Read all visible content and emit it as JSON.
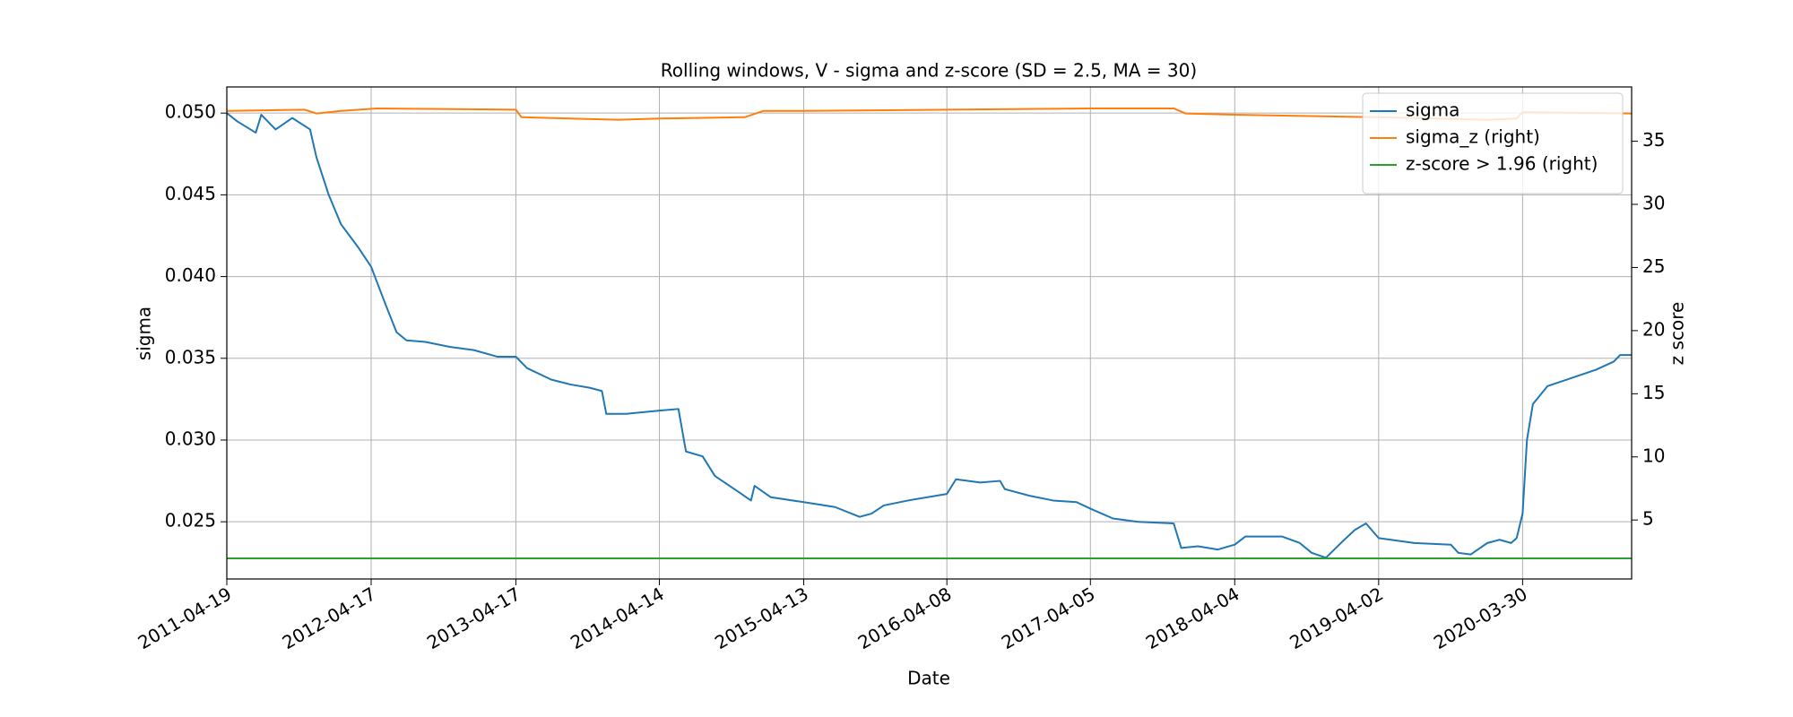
{
  "chart_data": {
    "type": "line",
    "title": "Rolling windows, V - sigma and z-score (SD = 2.5, MA = 30)",
    "x_label": "Date",
    "y_label": "sigma",
    "y2_label": "z score",
    "xlim": [
      "2011-04-19",
      "2020-12-30"
    ],
    "xticks": [
      "2011-04-19",
      "2012-04-17",
      "2013-04-17",
      "2014-04-14",
      "2015-04-13",
      "2016-04-08",
      "2017-04-05",
      "2018-04-04",
      "2019-04-02",
      "2020-03-30"
    ],
    "ylim": [
      0.0215,
      0.0516
    ],
    "yticks": [
      0.025,
      {
        "value": 0.03,
        "label": "0.030"
      },
      0.035,
      {
        "value": 0.04,
        "label": "0.040"
      },
      0.045,
      {
        "value": 0.05,
        "label": "0.050"
      }
    ],
    "y2lim": [
      0.33,
      39.3
    ],
    "y2ticks": [
      5,
      10,
      15,
      20,
      25,
      30,
      35
    ],
    "grid": true,
    "legend": "upper right",
    "series": [
      {
        "name": "sigma",
        "color": "#1f77b4",
        "x": [
          "2011-04-19",
          "2011-05-15",
          "2011-07-01",
          "2011-07-15",
          "2011-08-20",
          "2011-10-01",
          "2011-11-15",
          "2011-12-01",
          "2012-01-01",
          "2012-02-01",
          "2012-03-15",
          "2012-04-17",
          "2012-05-20",
          "2012-06-20",
          "2012-07-15",
          "2012-09-01",
          "2012-11-01",
          "2013-01-01",
          "2013-03-01",
          "2013-04-17",
          "2013-05-15",
          "2013-07-15",
          "2013-09-01",
          "2013-10-20",
          "2013-11-20",
          "2013-12-01",
          "2014-01-20",
          "2014-04-14",
          "2014-06-01",
          "2014-06-20",
          "2014-08-01",
          "2014-09-01",
          "2014-11-01",
          "2014-12-01",
          "2014-12-10",
          "2015-01-20",
          "2015-04-13",
          "2015-07-01",
          "2015-09-01",
          "2015-10-01",
          "2015-11-01",
          "2016-01-01",
          "2016-04-08",
          "2016-05-01",
          "2016-07-01",
          "2016-08-20",
          "2016-09-01",
          "2016-11-01",
          "2017-01-01",
          "2017-03-01",
          "2017-04-05",
          "2017-06-01",
          "2017-08-01",
          "2017-11-01",
          "2017-11-20",
          "2018-01-01",
          "2018-02-20",
          "2018-04-04",
          "2018-05-01",
          "2018-08-01",
          "2018-09-15",
          "2018-10-15",
          "2018-11-20",
          "2019-01-01",
          "2019-02-01",
          "2019-03-01",
          "2019-04-02",
          "2019-07-01",
          "2019-10-01",
          "2019-10-20",
          "2019-11-20",
          "2020-01-01",
          "2020-02-01",
          "2020-03-01",
          "2020-03-15",
          "2020-03-30",
          "2020-04-10",
          "2020-04-25",
          "2020-06-01",
          "2020-08-01",
          "2020-10-01",
          "2020-11-15",
          "2020-12-01",
          "2020-12-30"
        ],
        "values": [
          0.05,
          0.0495,
          0.0488,
          0.0499,
          0.049,
          0.0497,
          0.049,
          0.0473,
          0.045,
          0.0432,
          0.0418,
          0.0406,
          0.0385,
          0.0366,
          0.0361,
          0.036,
          0.0357,
          0.0355,
          0.0351,
          0.0351,
          0.0344,
          0.0337,
          0.0334,
          0.0332,
          0.033,
          0.0316,
          0.0316,
          0.0318,
          0.0319,
          0.0293,
          0.029,
          0.0278,
          0.0268,
          0.0263,
          0.0272,
          0.0265,
          0.0262,
          0.0259,
          0.0253,
          0.0255,
          0.026,
          0.0263,
          0.0267,
          0.0276,
          0.0274,
          0.0275,
          0.027,
          0.0266,
          0.0263,
          0.0262,
          0.0258,
          0.0252,
          0.025,
          0.0249,
          0.0234,
          0.0235,
          0.0233,
          0.0236,
          0.0241,
          0.0241,
          0.0237,
          0.0231,
          0.0228,
          0.0238,
          0.0245,
          0.0249,
          0.024,
          0.0237,
          0.0236,
          0.0231,
          0.023,
          0.0237,
          0.0239,
          0.0237,
          0.024,
          0.0255,
          0.03,
          0.0322,
          0.0333,
          0.0338,
          0.0343,
          0.0348,
          0.0352,
          0.0352
        ]
      },
      {
        "name": "sigma_z (right)",
        "color": "#ff7f0e",
        "axis": "y2",
        "x": [
          "2011-04-19",
          "2011-11-01",
          "2011-12-01",
          "2012-02-01",
          "2012-05-01",
          "2013-04-17",
          "2013-05-01",
          "2014-01-01",
          "2014-04-14",
          "2014-11-15",
          "2015-01-01",
          "2015-04-13",
          "2016-04-08",
          "2017-04-05",
          "2017-11-01",
          "2017-12-01",
          "2018-04-04",
          "2019-04-02",
          "2020-01-01",
          "2020-03-15",
          "2020-03-30",
          "2020-12-30"
        ],
        "values": [
          37.4,
          37.5,
          37.2,
          37.4,
          37.6,
          37.5,
          36.9,
          36.7,
          36.8,
          36.9,
          37.4,
          37.4,
          37.5,
          37.6,
          37.6,
          37.2,
          37.1,
          36.9,
          36.7,
          36.8,
          37.3,
          37.2
        ]
      },
      {
        "name": "z-score > 1.96 (right)",
        "color": "#2ca02c",
        "axis": "y2",
        "x": [
          "2011-04-19",
          "2020-12-30"
        ],
        "values": [
          1.96,
          1.96
        ]
      }
    ]
  }
}
